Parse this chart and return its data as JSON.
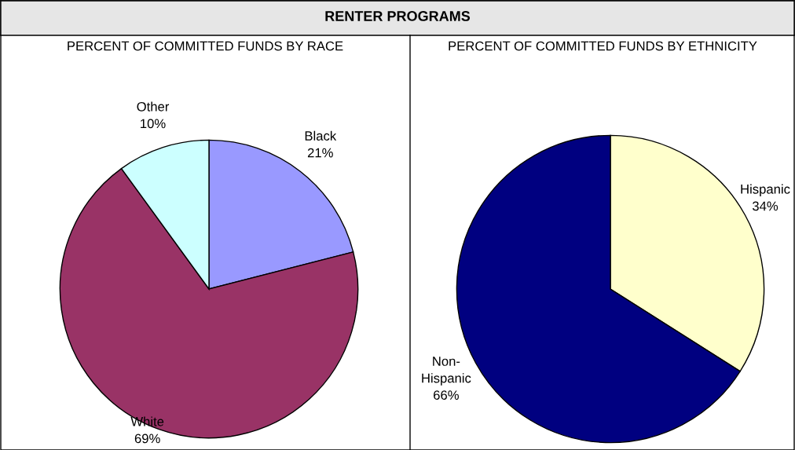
{
  "chart_data": [
    {
      "type": "pie",
      "title": "PERCENT OF COMMITTED FUNDS BY RACE",
      "annotations": [
        "RENTER PROGRAMS"
      ],
      "categories": [
        "Black",
        "White",
        "Other"
      ],
      "values": [
        21,
        69,
        10
      ],
      "value_labels": [
        "21%",
        "69%",
        "10%"
      ],
      "colors": [
        "#9999ff",
        "#993366",
        "#ccffff"
      ]
    },
    {
      "type": "pie",
      "title": "PERCENT OF COMMITTED FUNDS BY ETHNICITY",
      "categories": [
        "Hispanic",
        "Non-Hispanic"
      ],
      "values": [
        34,
        66
      ],
      "value_labels": [
        "34%",
        "66%"
      ],
      "colors": [
        "#ffffcc",
        "#000080"
      ]
    }
  ]
}
